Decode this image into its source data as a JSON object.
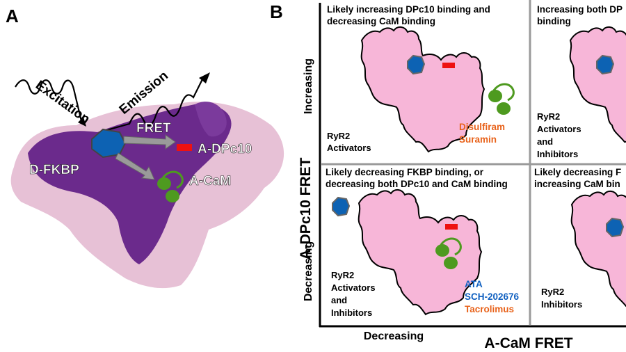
{
  "panel_a": {
    "label": "A",
    "excitation": "Excitation",
    "emission": "Emission",
    "fret": "FRET",
    "d_fkbp": "D-FKBP",
    "a_dpc10": "A-DPc10",
    "a_cam": "A-CaM"
  },
  "panel_b": {
    "label": "B",
    "y_axis_title": "A-DPc10 FRET",
    "y_increasing": "Increasing",
    "y_decreasing": "Decreasing",
    "x_axis_title": "A-CaM FRET",
    "x_decreasing": "Decreasing",
    "q1": {
      "heading_line1": "Likely increasing DPc10 binding and",
      "heading_line2": "decreasing CaM binding",
      "class_line1": "RyR2",
      "class_line2": "Activators",
      "drug1": "Disulfiram",
      "drug2": "Suramin"
    },
    "q2": {
      "heading_line1": "Increasing both DP",
      "heading_line2": "binding",
      "class_line1": "RyR2",
      "class_line2": "Activators",
      "class_line3": "and",
      "class_line4": "Inhibitors"
    },
    "q3": {
      "heading_line1": "Likely decreasing FKBP binding, or",
      "heading_line2": "decreasing both DPc10 and CaM binding",
      "class_line1": "RyR2",
      "class_line2": "Activators",
      "class_line3": "and",
      "class_line4": "Inhibitors",
      "drug1": "ATA",
      "drug2": "SCH-202676",
      "drug3": "Tacrolimus"
    },
    "q4": {
      "heading_line1": "Likely decreasing F",
      "heading_line2": "increasing CaM bin",
      "class_line1": "RyR2",
      "class_line2": "Inhibitors"
    }
  },
  "colors": {
    "ryr_pink": "#f7b6d8",
    "ryr_dark": "#6b2a8c",
    "ryr_light": "#e7c1d6",
    "fkbp_blue": "#0d62b3",
    "cam_green": "#4e9a1f",
    "dpc10_red": "#ee1111",
    "drug_orange": "#e8621a",
    "drug_blue": "#1060c0"
  }
}
